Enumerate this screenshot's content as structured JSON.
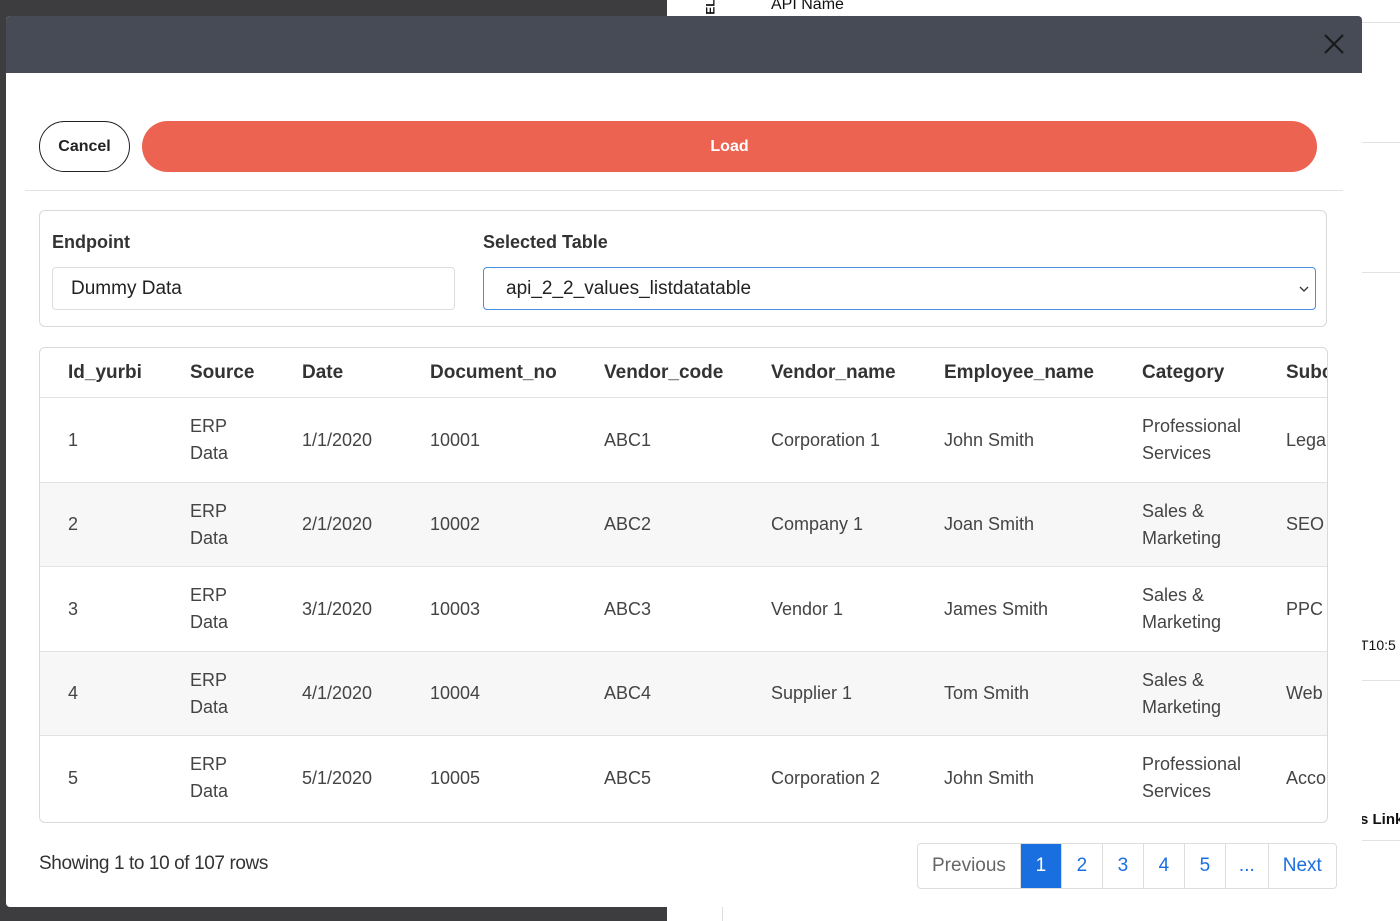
{
  "background": {
    "api_name": "API Name",
    "side_label": "EL",
    "timestamp_fragment": "T10:5",
    "link_fragment": "s Link"
  },
  "buttons": {
    "cancel": "Cancel",
    "load": "Load"
  },
  "form": {
    "endpoint_label": "Endpoint",
    "endpoint_value": "Dummy Data",
    "table_label": "Selected Table",
    "table_value": "api_2_2_values_listdatatable"
  },
  "table": {
    "columns": [
      "Id_yurbi",
      "Source",
      "Date",
      "Document_no",
      "Vendor_code",
      "Vendor_name",
      "Employee_name",
      "Category",
      "Subc"
    ],
    "rows": [
      [
        "1",
        "ERP\nData",
        "1/1/2020",
        "10001",
        "ABC1",
        "Corporation 1",
        "John Smith",
        "Professional\nServices",
        "Lega"
      ],
      [
        "2",
        "ERP\nData",
        "2/1/2020",
        "10002",
        "ABC2",
        "Company 1",
        "Joan Smith",
        "Sales &\nMarketing",
        "SEO"
      ],
      [
        "3",
        "ERP\nData",
        "3/1/2020",
        "10003",
        "ABC3",
        "Vendor 1",
        "James Smith",
        "Sales &\nMarketing",
        "PPC"
      ],
      [
        "4",
        "ERP\nData",
        "4/1/2020",
        "10004",
        "ABC4",
        "Supplier 1",
        "Tom Smith",
        "Sales &\nMarketing",
        "Web"
      ],
      [
        "5",
        "ERP\nData",
        "5/1/2020",
        "10005",
        "ABC5",
        "Corporation 2",
        "John Smith",
        "Professional\nServices",
        "Acco"
      ]
    ]
  },
  "pagination": {
    "summary": "Showing 1 to 10 of 107 rows",
    "previous": "Previous",
    "pages": [
      "1",
      "2",
      "3",
      "4",
      "5",
      "..."
    ],
    "next": "Next"
  }
}
